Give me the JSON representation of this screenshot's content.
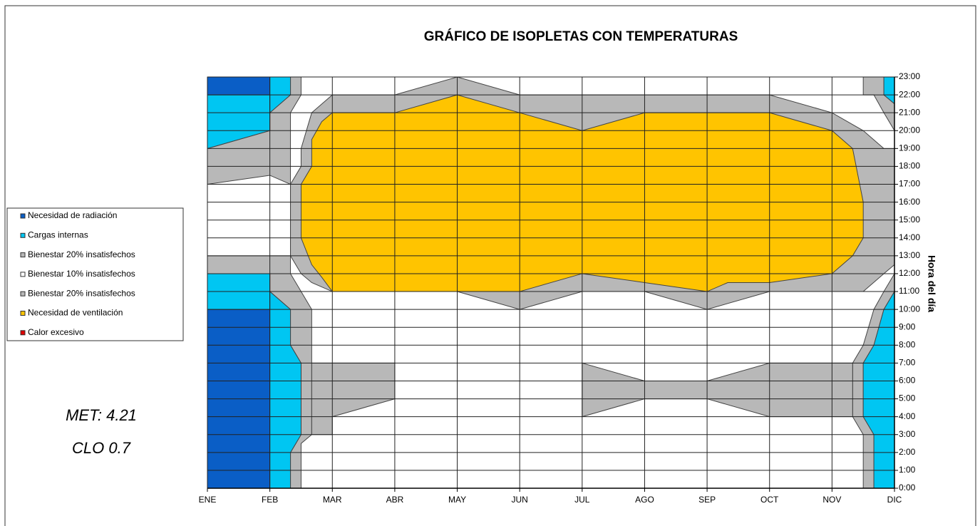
{
  "chart_data": {
    "type": "isopleth",
    "title": "GRÁFICO DE ISOPLETAS CON TEMPERATURAS",
    "y_axis_label": "Hora del día",
    "annotations": [
      "MET: 4.21",
      "CLO 0.7"
    ],
    "xlim": [
      0,
      11
    ],
    "xticks": [
      {
        "value": 0,
        "label": "ENE"
      },
      {
        "value": 1,
        "label": "FEB"
      },
      {
        "value": 2,
        "label": "MAR"
      },
      {
        "value": 3,
        "label": "ABR"
      },
      {
        "value": 4,
        "label": "MAY"
      },
      {
        "value": 5,
        "label": "JUN"
      },
      {
        "value": 6,
        "label": "JUL"
      },
      {
        "value": 7,
        "label": "AGO"
      },
      {
        "value": 8,
        "label": "SEP"
      },
      {
        "value": 9,
        "label": "OCT"
      },
      {
        "value": 10,
        "label": "NOV"
      },
      {
        "value": 11,
        "label": "DIC"
      }
    ],
    "ylim": [
      0,
      23
    ],
    "yticks": [
      {
        "value": 0,
        "label": "0:00"
      },
      {
        "value": 1,
        "label": "1:00"
      },
      {
        "value": 2,
        "label": "2:00"
      },
      {
        "value": 3,
        "label": "3:00"
      },
      {
        "value": 4,
        "label": "4:00"
      },
      {
        "value": 5,
        "label": "5:00"
      },
      {
        "value": 6,
        "label": "6:00"
      },
      {
        "value": 7,
        "label": "7:00"
      },
      {
        "value": 8,
        "label": "8:00"
      },
      {
        "value": 9,
        "label": "9:00"
      },
      {
        "value": 10,
        "label": "10:00"
      },
      {
        "value": 11,
        "label": "11:00"
      },
      {
        "value": 12,
        "label": "12:00"
      },
      {
        "value": 13,
        "label": "13:00"
      },
      {
        "value": 14,
        "label": "14:00"
      },
      {
        "value": 15,
        "label": "15:00"
      },
      {
        "value": 16,
        "label": "16:00"
      },
      {
        "value": 17,
        "label": "17:00"
      },
      {
        "value": 18,
        "label": "18:00"
      },
      {
        "value": 19,
        "label": "19:00"
      },
      {
        "value": 20,
        "label": "20:00"
      },
      {
        "value": 21,
        "label": "21:00"
      },
      {
        "value": 22,
        "label": "22:00"
      },
      {
        "value": 23,
        "label": "23:00"
      }
    ],
    "grid": true,
    "legend": "left",
    "series": [
      {
        "name": "Necesidad de radiación",
        "color": "#0a5ec6"
      },
      {
        "name": "Cargas internas",
        "color": "#00c6f2"
      },
      {
        "name": "Bienestar 20% insatisfechos",
        "color": "#b8b8b8"
      },
      {
        "name": "Bienestar 10% insatisfechos",
        "color": "#ffffff"
      },
      {
        "name": "Bienestar 20% insatisfechos",
        "color": "#b8b8b8"
      },
      {
        "name": "Necesidad de ventilación",
        "color": "#ffc400"
      },
      {
        "name": "Calor excesivo",
        "color": "#e00000"
      }
    ],
    "zones": [
      {
        "series": 2,
        "x": [
          1.33,
          10.67,
          10.67,
          10.5,
          10.5,
          10.67,
          10.83,
          11,
          11,
          10.83,
          10.83,
          1.33,
          1.33,
          1,
          1,
          0,
          0,
          1,
          1,
          1.33,
          1.33,
          1.5,
          1.5,
          1.33
        ],
        "y": [
          0,
          0,
          3,
          4,
          7,
          8,
          10,
          11,
          21.5,
          22,
          23,
          23,
          22,
          21,
          20,
          19,
          12,
          12,
          11,
          10,
          8,
          7,
          3,
          2
        ]
      },
      {
        "series": 3,
        "x": [
          1.5,
          10.5,
          10.5,
          10.33,
          10.33,
          10.5,
          10.67,
          10.83,
          11,
          11,
          10.83,
          10.67,
          10.5,
          10.5,
          1.5,
          1.5,
          1.33,
          1.33,
          1.33,
          1.5,
          1.67,
          1.67,
          1.67,
          1.5
        ],
        "y": [
          0,
          0,
          3,
          4,
          7,
          8,
          10,
          11,
          12,
          20,
          21,
          22,
          22,
          23,
          23,
          22,
          21,
          20,
          12,
          11,
          10,
          8,
          3,
          2.5
        ]
      },
      {
        "series": 3,
        "x": [
          0,
          1.33,
          1.33,
          1,
          0
        ],
        "y": [
          13,
          13,
          17,
          17.5,
          17
        ]
      },
      {
        "series": 2,
        "x": [
          1.67,
          2,
          2,
          3,
          3,
          1.67
        ],
        "y": [
          3,
          3,
          4,
          5,
          7,
          7
        ]
      },
      {
        "series": 2,
        "x": [
          6,
          7,
          8,
          9,
          10.33,
          10.33,
          9,
          8,
          7,
          6
        ],
        "y": [
          4,
          5,
          5,
          4,
          4,
          7,
          7,
          6,
          6,
          7
        ]
      },
      {
        "series": 4,
        "x": [
          1.5,
          1.67,
          2,
          3,
          4,
          5,
          6,
          7,
          8,
          9,
          10,
          10.5,
          10.83,
          11,
          11,
          10.83,
          10.5,
          10,
          9,
          8,
          7,
          6,
          5,
          4,
          3,
          2,
          1.67,
          1.5,
          1.33,
          1.33,
          1.5
        ],
        "y": [
          19,
          21,
          22,
          22,
          23,
          22,
          22,
          22,
          22,
          22,
          21,
          20,
          19,
          19,
          12.5,
          12,
          11,
          11,
          11,
          10,
          11,
          11,
          10,
          11,
          11,
          11,
          11.5,
          12,
          13,
          17,
          18
        ]
      },
      {
        "series": 5,
        "x": [
          2,
          3,
          4,
          5,
          6,
          7,
          8,
          8.33,
          9,
          10,
          10.33,
          10.5,
          10.5,
          10.33,
          10,
          9,
          8,
          7,
          6,
          5,
          4,
          3,
          2,
          1.83,
          1.67,
          1.67,
          1.5,
          1.5,
          1.67,
          1.83
        ],
        "y": [
          11,
          11,
          11,
          11,
          12,
          11.5,
          11,
          11.5,
          11.5,
          12,
          13,
          14,
          16,
          19,
          20,
          21,
          21,
          21,
          20,
          21,
          22,
          21,
          21,
          20.5,
          19.5,
          18,
          17,
          14,
          12.5,
          11.8
        ]
      },
      {
        "series": 0,
        "x": [
          0,
          1,
          1,
          0
        ],
        "y": [
          0,
          0,
          10,
          10
        ]
      },
      {
        "series": 0,
        "x": [
          0,
          1,
          1,
          0
        ],
        "y": [
          22,
          22,
          23,
          23
        ]
      },
      {
        "series": 1,
        "x": [
          0,
          1,
          1,
          0
        ],
        "y": [
          10,
          10,
          12,
          12
        ]
      },
      {
        "series": 1,
        "x": [
          0,
          1,
          1,
          0
        ],
        "y": [
          19,
          20,
          22,
          22
        ]
      },
      {
        "series": 1,
        "x": [
          1,
          1.33,
          1.33,
          1
        ],
        "y": [
          21,
          22,
          23,
          23
        ]
      },
      {
        "series": 1,
        "x": [
          1,
          1.33,
          1.33,
          1.5,
          1.5,
          1.33,
          1.33,
          1
        ],
        "y": [
          0,
          0,
          2,
          3,
          7,
          8,
          10,
          11
        ]
      },
      {
        "series": 1,
        "x": [
          11,
          10.67,
          10.67,
          10.5,
          10.5,
          10.67,
          10.83,
          11
        ],
        "y": [
          0,
          0,
          3,
          4,
          7,
          8,
          10,
          11
        ]
      },
      {
        "series": 1,
        "x": [
          10.83,
          11,
          11,
          10.83
        ],
        "y": [
          23,
          23,
          21.5,
          22
        ]
      }
    ]
  }
}
